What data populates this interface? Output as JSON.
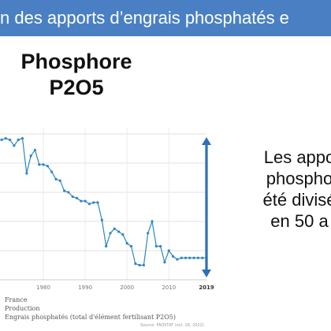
{
  "banner": {
    "text": "n des apports d’engrais phosphatés e"
  },
  "chart_data": {
    "type": "line",
    "title_lines": [
      "Phosphore",
      "P2O5"
    ],
    "x_tick_labels": [
      "1980",
      "1990",
      "2000",
      "2010",
      "2019"
    ],
    "x_ticks": [
      1980,
      1990,
      2000,
      2010,
      2019
    ],
    "xlim": [
      1970,
      2019
    ],
    "ylim": [
      0,
      10
    ],
    "grid": true,
    "line_color": "#2e86c1",
    "series": [
      {
        "x": [
          1970,
          1971,
          1972,
          1973,
          1974,
          1975,
          1976,
          1977,
          1978,
          1979,
          1980,
          1981,
          1982,
          1983,
          1984,
          1985,
          1986,
          1987,
          1988,
          1989,
          1990,
          1991,
          1992,
          1993,
          1994,
          1995,
          1996,
          1997,
          1998,
          1999,
          2000,
          2001,
          2002,
          2003,
          2004,
          2005,
          2006,
          2007,
          2008,
          2009,
          2010,
          2011,
          2012,
          2013,
          2014,
          2015,
          2016,
          2017,
          2018,
          2019
        ],
        "y": [
          9.6,
          9.7,
          9.6,
          9.2,
          9.6,
          9.7,
          7.3,
          8.5,
          8.9,
          7.9,
          7.9,
          7.8,
          7.4,
          6.9,
          6.8,
          6.1,
          6.0,
          5.7,
          5.6,
          5.4,
          5.4,
          5.2,
          5.3,
          5.3,
          4.1,
          2.3,
          3.2,
          3.5,
          3.3,
          3.1,
          2.5,
          2.3,
          1.1,
          1.0,
          1.0,
          3.2,
          4.0,
          2.3,
          2.3,
          1.2,
          2.0,
          1.6,
          1.4,
          1.5,
          1.5,
          1.5,
          1.5,
          1.5,
          1.5,
          1.5
        ]
      }
    ],
    "arrow_color": "#2e6fba"
  },
  "side_text": [
    "Les appo",
    "phospho",
    "été divisé",
    "en 50 a"
  ],
  "meta": {
    "line1": "France",
    "line2": "Production",
    "line3": "Engrais phosphatés (total d'élément fertilisant P2O5)",
    "source": "Source: FAOSTAT (oct. 16, 2022)"
  }
}
